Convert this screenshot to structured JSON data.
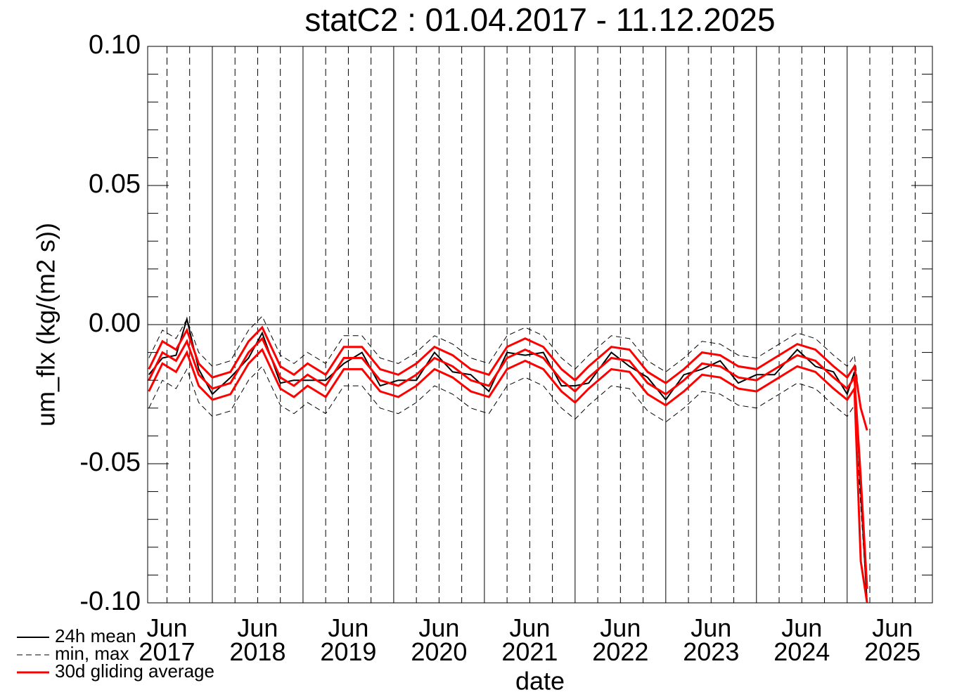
{
  "chart_data": {
    "type": "line",
    "title": "statC2 : 01.04.2017 - 11.12.2025",
    "x_label": "date",
    "y_label": "um_flx (kg/(m2 s))",
    "xlim": [
      2017.287,
      2025.94
    ],
    "ylim": [
      -0.1,
      0.1
    ],
    "yticks": [
      {
        "value": 0.1,
        "label": "0.10"
      },
      {
        "value": 0.05,
        "label": "0.05"
      },
      {
        "value": 0,
        "label": "0.00"
      },
      {
        "value": -0.05,
        "label": "-0.05"
      },
      {
        "value": -0.1,
        "label": "-0.10"
      }
    ],
    "yminorticks": [
      -0.09,
      -0.08,
      -0.07,
      -0.06,
      -0.04,
      -0.03,
      -0.02,
      -0.01,
      0.01,
      0.02,
      0.03,
      0.04,
      0.06,
      0.07,
      0.08,
      0.09
    ],
    "xticks": [
      {
        "value": 2017.5,
        "label": "Jun 2017"
      },
      {
        "value": 2018.5,
        "label": "Jun 2018"
      },
      {
        "value": 2019.5,
        "label": "Jun 2019"
      },
      {
        "value": 2020.5,
        "label": "Jun 2020"
      },
      {
        "value": 2021.5,
        "label": "Jun 2021"
      },
      {
        "value": 2022.5,
        "label": "Jun 2022"
      },
      {
        "value": 2023.5,
        "label": "Jun 2023"
      },
      {
        "value": 2024.5,
        "label": "Jun 2024"
      },
      {
        "value": 2025.5,
        "label": "Jun 2025"
      }
    ],
    "year_lines": [
      2018,
      2019,
      2020,
      2021,
      2022,
      2023,
      2024,
      2025
    ],
    "quarter_lines": [
      2017.5,
      2017.75,
      2018.25,
      2018.5,
      2018.75,
      2019.25,
      2019.5,
      2019.75,
      2020.25,
      2020.5,
      2020.75,
      2021.25,
      2021.5,
      2021.75,
      2022.25,
      2022.5,
      2022.75,
      2023.25,
      2023.5,
      2023.75,
      2024.25,
      2024.5,
      2024.75,
      2025.25,
      2025.5,
      2025.75
    ],
    "zero_line": 0,
    "x": [
      2017.3,
      2017.45,
      2017.6,
      2017.72,
      2017.85,
      2018.0,
      2018.2,
      2018.4,
      2018.55,
      2018.75,
      2018.9,
      2019.05,
      2019.25,
      2019.45,
      2019.65,
      2019.85,
      2020.05,
      2020.25,
      2020.45,
      2020.65,
      2020.85,
      2021.05,
      2021.25,
      2021.45,
      2021.65,
      2021.85,
      2022.0,
      2022.15,
      2022.4,
      2022.6,
      2022.8,
      2023.0,
      2023.2,
      2023.4,
      2023.6,
      2023.8,
      2024.0,
      2024.2,
      2024.45,
      2024.65,
      2024.85,
      2025.0,
      2025.08,
      2025.15,
      2025.22
    ],
    "series": [
      {
        "name": "24h mean",
        "color": "#000000",
        "dash": false,
        "width": 2,
        "values": [
          -0.018,
          -0.012,
          -0.011,
          0.002,
          -0.016,
          -0.025,
          -0.019,
          -0.012,
          -0.003,
          -0.021,
          -0.02,
          -0.02,
          -0.02,
          -0.014,
          -0.01,
          -0.022,
          -0.02,
          -0.02,
          -0.01,
          -0.017,
          -0.018,
          -0.024,
          -0.01,
          -0.011,
          -0.01,
          -0.022,
          -0.022,
          -0.021,
          -0.01,
          -0.015,
          -0.019,
          -0.027,
          -0.018,
          -0.016,
          -0.013,
          -0.021,
          -0.018,
          -0.018,
          -0.009,
          -0.015,
          -0.017,
          -0.025,
          -0.017,
          -0.06,
          -0.1
        ]
      },
      {
        "name": "min, max",
        "color": "#000000",
        "dash": true,
        "width": 1,
        "low": [
          -0.03,
          -0.02,
          -0.023,
          -0.016,
          -0.028,
          -0.033,
          -0.031,
          -0.02,
          -0.015,
          -0.029,
          -0.032,
          -0.028,
          -0.032,
          -0.022,
          -0.022,
          -0.03,
          -0.032,
          -0.028,
          -0.022,
          -0.025,
          -0.03,
          -0.032,
          -0.022,
          -0.019,
          -0.022,
          -0.03,
          -0.034,
          -0.029,
          -0.022,
          -0.023,
          -0.031,
          -0.035,
          -0.03,
          -0.024,
          -0.025,
          -0.029,
          -0.03,
          -0.026,
          -0.021,
          -0.023,
          -0.029,
          -0.033,
          -0.029,
          -0.065,
          -0.1
        ],
        "high": [
          -0.012,
          -0.002,
          -0.005,
          0.002,
          -0.01,
          -0.015,
          -0.013,
          -0.002,
          0.003,
          -0.011,
          -0.014,
          -0.01,
          -0.014,
          -0.004,
          -0.004,
          -0.012,
          -0.014,
          -0.01,
          -0.004,
          -0.007,
          -0.012,
          -0.014,
          -0.004,
          -0.001,
          -0.004,
          -0.012,
          -0.016,
          -0.011,
          -0.004,
          -0.005,
          -0.013,
          -0.017,
          -0.012,
          -0.006,
          -0.007,
          -0.011,
          -0.012,
          -0.008,
          -0.003,
          -0.005,
          -0.011,
          -0.015,
          -0.011,
          -0.03,
          -0.037
        ]
      },
      {
        "name": "30d gliding average",
        "color": "#ff0000",
        "dash": false,
        "width": 3,
        "values": [
          -0.02,
          -0.01,
          -0.013,
          -0.006,
          -0.018,
          -0.023,
          -0.021,
          -0.01,
          -0.005,
          -0.019,
          -0.022,
          -0.018,
          -0.022,
          -0.012,
          -0.012,
          -0.02,
          -0.022,
          -0.018,
          -0.012,
          -0.015,
          -0.02,
          -0.022,
          -0.012,
          -0.009,
          -0.012,
          -0.02,
          -0.024,
          -0.019,
          -0.012,
          -0.013,
          -0.021,
          -0.025,
          -0.02,
          -0.014,
          -0.015,
          -0.019,
          -0.02,
          -0.016,
          -0.011,
          -0.013,
          -0.019,
          -0.023,
          -0.019,
          -0.055,
          -0.095
        ],
        "low": [
          -0.024,
          -0.014,
          -0.017,
          -0.01,
          -0.022,
          -0.027,
          -0.025,
          -0.014,
          -0.009,
          -0.023,
          -0.026,
          -0.022,
          -0.026,
          -0.016,
          -0.016,
          -0.024,
          -0.026,
          -0.022,
          -0.016,
          -0.019,
          -0.024,
          -0.026,
          -0.016,
          -0.013,
          -0.016,
          -0.024,
          -0.028,
          -0.023,
          -0.016,
          -0.017,
          -0.025,
          -0.029,
          -0.024,
          -0.018,
          -0.019,
          -0.023,
          -0.024,
          -0.02,
          -0.015,
          -0.017,
          -0.023,
          -0.027,
          -0.023,
          -0.085,
          -0.1
        ],
        "high": [
          -0.016,
          -0.006,
          -0.009,
          -0.002,
          -0.014,
          -0.019,
          -0.017,
          -0.006,
          -0.001,
          -0.015,
          -0.018,
          -0.014,
          -0.018,
          -0.008,
          -0.008,
          -0.016,
          -0.018,
          -0.014,
          -0.008,
          -0.011,
          -0.016,
          -0.018,
          -0.008,
          -0.005,
          -0.008,
          -0.016,
          -0.02,
          -0.015,
          -0.008,
          -0.009,
          -0.017,
          -0.021,
          -0.016,
          -0.01,
          -0.011,
          -0.015,
          -0.016,
          -0.012,
          -0.007,
          -0.009,
          -0.015,
          -0.019,
          -0.015,
          -0.03,
          -0.038
        ]
      }
    ]
  }
}
